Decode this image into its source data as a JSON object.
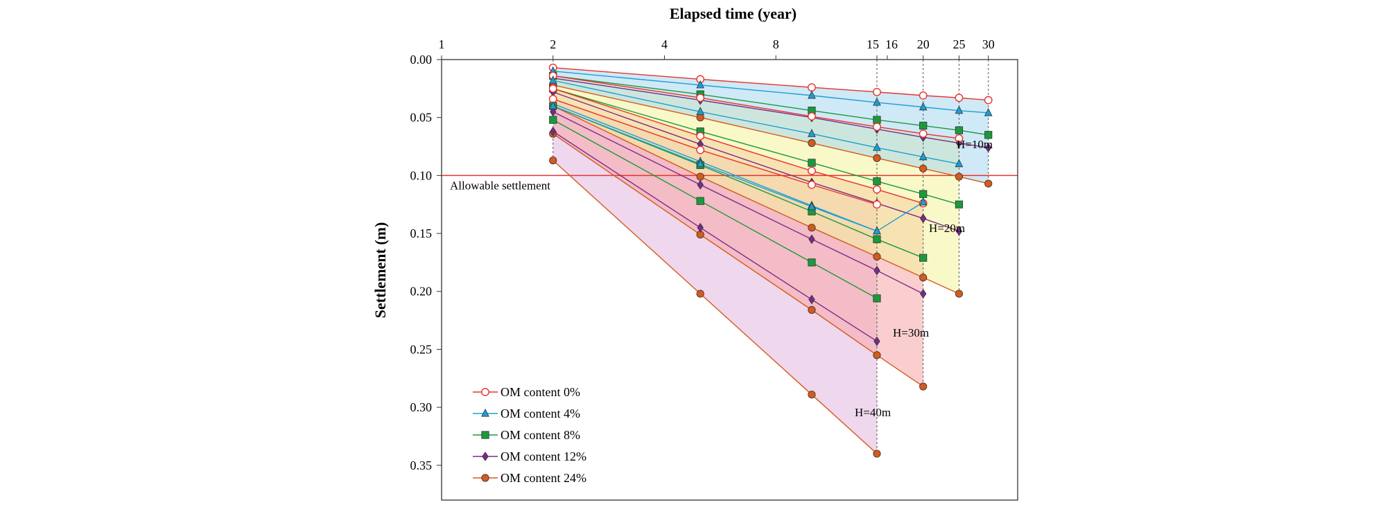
{
  "chart_data": {
    "type": "line",
    "x_scale": "log",
    "xlabel": "Elapsed time (year)",
    "ylabel": "Settlement (m)",
    "xlim": [
      1,
      36
    ],
    "ylim": [
      0,
      0.38
    ],
    "y_inverted": true,
    "x_ticks": [
      1,
      2,
      4,
      8,
      15,
      16,
      20,
      25,
      30
    ],
    "x_tick_labels": [
      "1",
      "2",
      "4",
      "8",
      "15",
      "16",
      "20",
      "25",
      "30"
    ],
    "y_ticks": [
      0,
      0.05,
      0.1,
      0.15,
      0.2,
      0.25,
      0.3,
      0.35
    ],
    "y_tick_labels": [
      "0.00",
      "0.05",
      "0.10",
      "0.15",
      "0.20",
      "0.25",
      "0.30",
      "0.35"
    ],
    "grid": false,
    "legend_position": "bottom-left",
    "series_styles": [
      {
        "name": "OM content 0%",
        "color": "#e8322c",
        "marker": "circle-open"
      },
      {
        "name": "OM content 4%",
        "color": "#1a9fd4",
        "marker": "triangle"
      },
      {
        "name": "OM content 8%",
        "color": "#1a9a3c",
        "marker": "square"
      },
      {
        "name": "OM content 12%",
        "color": "#7a2a8a",
        "marker": "diamond"
      },
      {
        "name": "OM content 24%",
        "color": "#d45a1e",
        "marker": "circle"
      }
    ],
    "groups": [
      {
        "label": "H=10m",
        "end_time": 30,
        "fill": "#aad7ee",
        "series": [
          {
            "om": 0,
            "x": [
              2,
              5,
              10,
              15,
              20,
              25,
              30
            ],
            "y": [
              0.007,
              0.017,
              0.024,
              0.028,
              0.031,
              0.033,
              0.035
            ]
          },
          {
            "om": 4,
            "x": [
              2,
              5,
              10,
              15,
              20,
              25,
              30
            ],
            "y": [
              0.01,
              0.022,
              0.031,
              0.037,
              0.041,
              0.044,
              0.046
            ]
          },
          {
            "om": 8,
            "x": [
              2,
              5,
              10,
              15,
              20,
              25,
              30
            ],
            "y": [
              0.014,
              0.03,
              0.044,
              0.052,
              0.057,
              0.061,
              0.065
            ]
          },
          {
            "om": 12,
            "x": [
              2,
              5,
              10,
              15,
              20,
              25,
              30
            ],
            "y": [
              0.016,
              0.035,
              0.05,
              0.06,
              0.067,
              0.072,
              0.076
            ]
          },
          {
            "om": 24,
            "x": [
              2,
              5,
              10,
              15,
              20,
              25,
              30
            ],
            "y": [
              0.022,
              0.05,
              0.072,
              0.085,
              0.094,
              0.101,
              0.107
            ]
          }
        ]
      },
      {
        "label": "H=20m",
        "end_time": 25,
        "fill": "#f4f29a",
        "series": [
          {
            "om": 0,
            "x": [
              2,
              5,
              10,
              15,
              20,
              25
            ],
            "y": [
              0.014,
              0.033,
              0.049,
              0.058,
              0.064,
              0.068
            ]
          },
          {
            "om": 4,
            "x": [
              2,
              5,
              10,
              15,
              20,
              25
            ],
            "y": [
              0.018,
              0.045,
              0.064,
              0.076,
              0.084,
              0.09
            ]
          },
          {
            "om": 8,
            "x": [
              2,
              5,
              10,
              15,
              20,
              25
            ],
            "y": [
              0.025,
              0.062,
              0.089,
              0.105,
              0.116,
              0.125
            ]
          },
          {
            "om": 12,
            "x": [
              2,
              5,
              10,
              15,
              20,
              25
            ],
            "y": [
              0.028,
              0.073,
              0.106,
              0.124,
              0.137,
              0.148
            ]
          },
          {
            "om": 24,
            "x": [
              2,
              5,
              10,
              15,
              20,
              25
            ],
            "y": [
              0.04,
              0.101,
              0.145,
              0.17,
              0.188,
              0.202
            ]
          }
        ]
      },
      {
        "label": "H=30m",
        "end_time": 20,
        "fill": "#f5a6a6",
        "series": [
          {
            "om": 0,
            "x": [
              2,
              5,
              10,
              15,
              20
            ],
            "y": [
              0.025,
              0.066,
              0.096,
              0.112,
              0.124
            ]
          },
          {
            "om": 4,
            "x": [
              2,
              5,
              10,
              15,
              20
            ],
            "y": [
              0.038,
              0.088,
              0.126,
              0.148,
              0.123
            ]
          },
          {
            "om": 8,
            "x": [
              2,
              5,
              10,
              15,
              20
            ],
            "y": [
              0.04,
              0.091,
              0.131,
              0.155,
              0.171
            ]
          },
          {
            "om": 12,
            "x": [
              2,
              5,
              10,
              15,
              20
            ],
            "y": [
              0.045,
              0.108,
              0.155,
              0.182,
              0.202
            ]
          },
          {
            "om": 24,
            "x": [
              2,
              5,
              10,
              15,
              20
            ],
            "y": [
              0.064,
              0.151,
              0.216,
              0.255,
              0.282
            ]
          }
        ]
      },
      {
        "label": "H=40m",
        "end_time": 15,
        "fill": "#e2b7de",
        "series": [
          {
            "om": 0,
            "x": [
              2,
              5,
              10,
              15
            ],
            "y": [
              0.034,
              0.078,
              0.108,
              0.125
            ]
          },
          {
            "om": 4,
            "x": [
              2,
              5,
              10,
              15
            ],
            "y": [
              0.04,
              0.09,
              0.127,
              0.148
            ]
          },
          {
            "om": 8,
            "x": [
              2,
              5,
              10,
              15
            ],
            "y": [
              0.052,
              0.122,
              0.175,
              0.206
            ]
          },
          {
            "om": 12,
            "x": [
              2,
              5,
              10,
              15
            ],
            "y": [
              0.062,
              0.145,
              0.207,
              0.243
            ]
          },
          {
            "om": 24,
            "x": [
              2,
              5,
              10,
              15
            ],
            "y": [
              0.087,
              0.202,
              0.289,
              0.34
            ]
          }
        ]
      }
    ],
    "allowable_settlement": {
      "label": "Allowable settlement",
      "y": 0.1,
      "color": "#e8322c"
    },
    "legend": [
      "OM content 0%",
      "OM content 4%",
      "OM content 8%",
      "OM content 12%",
      "OM content 24%"
    ]
  }
}
